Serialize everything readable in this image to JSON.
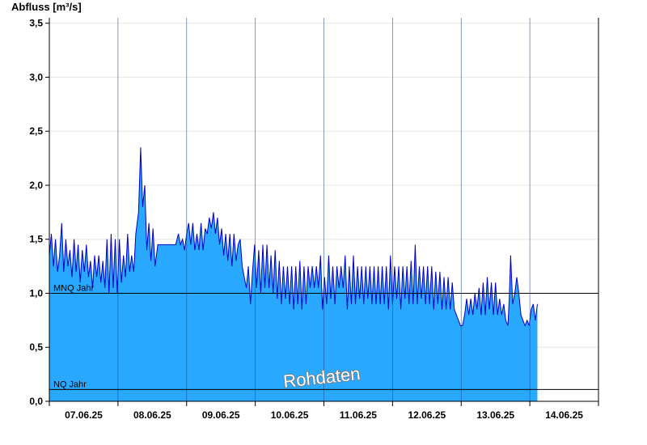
{
  "chart_data": {
    "type": "area",
    "ylabel": "Abfluss [m³/s]",
    "ylim": [
      0,
      3.55
    ],
    "yticks": [
      "0,0",
      "0,5",
      "1,0",
      "1,5",
      "2,0",
      "2,5",
      "3,0",
      "3,5"
    ],
    "yticks_values": [
      0,
      0.5,
      1.0,
      1.5,
      2.0,
      2.5,
      3.0,
      3.5
    ],
    "xticks": [
      "07.06.25",
      "08.06.25",
      "09.06.25",
      "10.06.25",
      "11.06.25",
      "12.06.25",
      "13.06.25",
      "14.06.25"
    ],
    "x_range_days": [
      0,
      8
    ],
    "grid": "horizontal",
    "watermark": "Rohdaten",
    "reference_lines": [
      {
        "label": "MNQ Jahr",
        "value": 1.0
      },
      {
        "label": "NQ Jahr",
        "value": 0.11
      }
    ],
    "series": [
      {
        "color": "#29a8ff",
        "line_color": "#0000cc",
        "points": [
          [
            0.0,
            1.35
          ],
          [
            0.03,
            1.55
          ],
          [
            0.06,
            1.25
          ],
          [
            0.09,
            1.5
          ],
          [
            0.12,
            1.2
          ],
          [
            0.15,
            1.35
          ],
          [
            0.18,
            1.65
          ],
          [
            0.21,
            1.2
          ],
          [
            0.24,
            1.5
          ],
          [
            0.27,
            1.25
          ],
          [
            0.3,
            1.4
          ],
          [
            0.33,
            1.15
          ],
          [
            0.36,
            1.5
          ],
          [
            0.39,
            1.2
          ],
          [
            0.42,
            1.45
          ],
          [
            0.45,
            1.1
          ],
          [
            0.48,
            1.4
          ],
          [
            0.51,
            1.2
          ],
          [
            0.54,
            1.45
          ],
          [
            0.57,
            1.15
          ],
          [
            0.6,
            1.3
          ],
          [
            0.63,
            1.05
          ],
          [
            0.66,
            1.35
          ],
          [
            0.69,
            1.15
          ],
          [
            0.72,
            1.35
          ],
          [
            0.75,
            1.1
          ],
          [
            0.78,
            1.3
          ],
          [
            0.81,
            1.05
          ],
          [
            0.84,
            1.5
          ],
          [
            0.87,
            1.0
          ],
          [
            0.9,
            1.55
          ],
          [
            0.93,
            1.05
          ],
          [
            0.96,
            1.5
          ],
          [
            0.99,
            1.0
          ],
          [
            1.02,
            1.5
          ],
          [
            1.05,
            1.1
          ],
          [
            1.08,
            1.35
          ],
          [
            1.11,
            1.15
          ],
          [
            1.14,
            1.55
          ],
          [
            1.17,
            1.2
          ],
          [
            1.2,
            1.35
          ],
          [
            1.23,
            1.2
          ],
          [
            1.26,
            1.55
          ],
          [
            1.3,
            1.75
          ],
          [
            1.33,
            2.35
          ],
          [
            1.36,
            1.8
          ],
          [
            1.39,
            2.0
          ],
          [
            1.42,
            1.4
          ],
          [
            1.45,
            1.65
          ],
          [
            1.48,
            1.3
          ],
          [
            1.51,
            1.6
          ],
          [
            1.54,
            1.25
          ],
          [
            1.58,
            1.45
          ],
          [
            1.62,
            1.45
          ],
          [
            1.7,
            1.45
          ],
          [
            1.78,
            1.45
          ],
          [
            1.84,
            1.45
          ],
          [
            1.88,
            1.55
          ],
          [
            1.91,
            1.45
          ],
          [
            1.94,
            1.5
          ],
          [
            1.97,
            1.4
          ],
          [
            2.0,
            1.55
          ],
          [
            2.03,
            1.65
          ],
          [
            2.06,
            1.45
          ],
          [
            2.09,
            1.65
          ],
          [
            2.12,
            1.4
          ],
          [
            2.15,
            1.55
          ],
          [
            2.18,
            1.4
          ],
          [
            2.21,
            1.65
          ],
          [
            2.24,
            1.4
          ],
          [
            2.27,
            1.6
          ],
          [
            2.3,
            1.55
          ],
          [
            2.33,
            1.7
          ],
          [
            2.36,
            1.6
          ],
          [
            2.39,
            1.75
          ],
          [
            2.42,
            1.55
          ],
          [
            2.45,
            1.7
          ],
          [
            2.48,
            1.45
          ],
          [
            2.51,
            1.6
          ],
          [
            2.54,
            1.35
          ],
          [
            2.57,
            1.55
          ],
          [
            2.6,
            1.3
          ],
          [
            2.63,
            1.55
          ],
          [
            2.66,
            1.25
          ],
          [
            2.69,
            1.55
          ],
          [
            2.72,
            1.3
          ],
          [
            2.75,
            1.45
          ],
          [
            2.78,
            1.5
          ],
          [
            2.81,
            1.25
          ],
          [
            2.84,
            1.15
          ],
          [
            2.87,
            1.05
          ],
          [
            2.9,
            1.25
          ],
          [
            2.93,
            0.9
          ],
          [
            2.96,
            1.2
          ],
          [
            2.99,
            1.45
          ],
          [
            3.02,
            1.05
          ],
          [
            3.05,
            1.4
          ],
          [
            3.08,
            1.0
          ],
          [
            3.11,
            1.45
          ],
          [
            3.14,
            1.05
          ],
          [
            3.17,
            1.45
          ],
          [
            3.2,
            1.05
          ],
          [
            3.23,
            1.35
          ],
          [
            3.26,
            1.0
          ],
          [
            3.29,
            1.4
          ],
          [
            3.32,
            0.95
          ],
          [
            3.35,
            1.3
          ],
          [
            3.38,
            0.9
          ],
          [
            3.41,
            1.25
          ],
          [
            3.44,
            0.95
          ],
          [
            3.47,
            1.25
          ],
          [
            3.5,
            0.9
          ],
          [
            3.53,
            1.25
          ],
          [
            3.56,
            0.85
          ],
          [
            3.59,
            1.25
          ],
          [
            3.62,
            0.9
          ],
          [
            3.65,
            1.3
          ],
          [
            3.68,
            0.85
          ],
          [
            3.71,
            1.25
          ],
          [
            3.74,
            0.9
          ],
          [
            3.77,
            1.25
          ],
          [
            3.8,
            1.05
          ],
          [
            3.83,
            1.25
          ],
          [
            3.86,
            1.05
          ],
          [
            3.89,
            1.25
          ],
          [
            3.92,
            1.05
          ],
          [
            3.95,
            1.35
          ],
          [
            3.98,
            0.85
          ],
          [
            4.01,
            1.15
          ],
          [
            4.04,
            0.9
          ],
          [
            4.07,
            1.35
          ],
          [
            4.1,
            0.95
          ],
          [
            4.13,
            1.25
          ],
          [
            4.16,
            0.9
          ],
          [
            4.19,
            1.25
          ],
          [
            4.22,
            1.05
          ],
          [
            4.25,
            1.25
          ],
          [
            4.28,
            1.05
          ],
          [
            4.31,
            1.35
          ],
          [
            4.34,
            0.85
          ],
          [
            4.37,
            1.25
          ],
          [
            4.4,
            0.9
          ],
          [
            4.43,
            1.35
          ],
          [
            4.46,
            0.9
          ],
          [
            4.49,
            1.25
          ],
          [
            4.52,
            0.95
          ],
          [
            4.55,
            1.25
          ],
          [
            4.58,
            0.9
          ],
          [
            4.61,
            1.25
          ],
          [
            4.64,
            0.95
          ],
          [
            4.67,
            1.25
          ],
          [
            4.7,
            0.9
          ],
          [
            4.73,
            1.25
          ],
          [
            4.76,
            0.9
          ],
          [
            4.79,
            1.25
          ],
          [
            4.82,
            0.9
          ],
          [
            4.85,
            1.25
          ],
          [
            4.88,
            0.9
          ],
          [
            4.91,
            1.25
          ],
          [
            4.94,
            0.85
          ],
          [
            4.97,
            1.35
          ],
          [
            5.0,
            0.9
          ],
          [
            5.03,
            1.25
          ],
          [
            5.06,
            0.95
          ],
          [
            5.09,
            1.25
          ],
          [
            5.12,
            0.85
          ],
          [
            5.15,
            1.25
          ],
          [
            5.18,
            0.95
          ],
          [
            5.21,
            1.25
          ],
          [
            5.24,
            0.9
          ],
          [
            5.27,
            1.3
          ],
          [
            5.3,
            0.9
          ],
          [
            5.33,
            1.45
          ],
          [
            5.36,
            0.9
          ],
          [
            5.39,
            1.25
          ],
          [
            5.42,
            0.95
          ],
          [
            5.45,
            1.25
          ],
          [
            5.48,
            0.9
          ],
          [
            5.51,
            1.25
          ],
          [
            5.54,
            0.9
          ],
          [
            5.57,
            1.25
          ],
          [
            5.6,
            0.85
          ],
          [
            5.63,
            1.2
          ],
          [
            5.66,
            0.9
          ],
          [
            5.69,
            1.2
          ],
          [
            5.72,
            0.85
          ],
          [
            5.75,
            1.15
          ],
          [
            5.78,
            0.85
          ],
          [
            5.81,
            1.15
          ],
          [
            5.84,
            0.85
          ],
          [
            5.87,
            1.1
          ],
          [
            5.9,
            0.85
          ],
          [
            5.93,
            0.8
          ],
          [
            5.96,
            0.75
          ],
          [
            5.99,
            0.7
          ],
          [
            6.02,
            0.7
          ],
          [
            6.05,
            0.8
          ],
          [
            6.08,
            0.95
          ],
          [
            6.11,
            0.8
          ],
          [
            6.14,
            0.95
          ],
          [
            6.17,
            0.8
          ],
          [
            6.2,
            1.0
          ],
          [
            6.23,
            0.85
          ],
          [
            6.26,
            1.05
          ],
          [
            6.29,
            0.8
          ],
          [
            6.32,
            1.1
          ],
          [
            6.35,
            0.8
          ],
          [
            6.38,
            1.15
          ],
          [
            6.41,
            0.85
          ],
          [
            6.44,
            1.1
          ],
          [
            6.47,
            0.8
          ],
          [
            6.5,
            1.1
          ],
          [
            6.53,
            0.8
          ],
          [
            6.56,
            0.95
          ],
          [
            6.59,
            0.8
          ],
          [
            6.62,
            0.9
          ],
          [
            6.65,
            0.75
          ],
          [
            6.68,
            0.7
          ],
          [
            6.7,
            0.95
          ],
          [
            6.72,
            1.35
          ],
          [
            6.75,
            0.9
          ],
          [
            6.78,
            1.0
          ],
          [
            6.81,
            1.15
          ],
          [
            6.84,
            1.0
          ],
          [
            6.87,
            0.8
          ],
          [
            6.9,
            0.75
          ],
          [
            6.93,
            0.7
          ],
          [
            6.96,
            0.75
          ],
          [
            6.99,
            0.7
          ],
          [
            7.02,
            0.85
          ],
          [
            7.05,
            0.9
          ],
          [
            7.08,
            0.75
          ],
          [
            7.11,
            0.9
          ]
        ]
      }
    ]
  }
}
